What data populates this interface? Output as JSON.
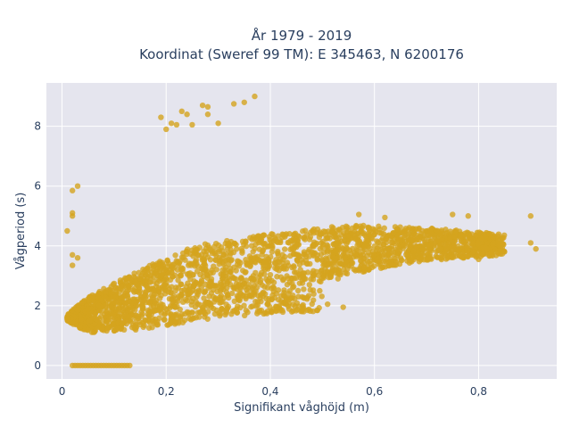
{
  "chart_data": {
    "type": "scatter",
    "title_line1": "År 1979 - 2019",
    "title_line2": "Koordinat (Sweref 99 TM): E 345463, N 6200176",
    "xlabel": "Signifikant våghöjd (m)",
    "ylabel": "Vågperiod (s)",
    "xlim": [
      -0.03,
      0.95
    ],
    "ylim": [
      -0.45,
      9.45
    ],
    "x_ticks": [
      0,
      0.2,
      0.4,
      0.6,
      0.8
    ],
    "x_tick_labels": [
      "0",
      "0,2",
      "0,4",
      "0,6",
      "0,8"
    ],
    "y_ticks": [
      0,
      2,
      4,
      6,
      8
    ],
    "y_tick_labels": [
      "0",
      "2",
      "4",
      "6",
      "8"
    ],
    "grid": true,
    "marker_color": "#D4A41E",
    "plot_background": "#E5E5EE",
    "series": [
      {
        "outliers": [
          {
            "x": 0.01,
            "y": 4.5
          },
          {
            "x": 0.02,
            "y": 5.1
          },
          {
            "x": 0.02,
            "y": 5.0
          },
          {
            "x": 0.02,
            "y": 5.85
          },
          {
            "x": 0.03,
            "y": 6.0
          },
          {
            "x": 0.02,
            "y": 3.7
          },
          {
            "x": 0.03,
            "y": 3.6
          },
          {
            "x": 0.02,
            "y": 3.35
          },
          {
            "x": 0.01,
            "y": 1.55
          },
          {
            "x": 0.19,
            "y": 8.3
          },
          {
            "x": 0.2,
            "y": 7.9
          },
          {
            "x": 0.21,
            "y": 8.1
          },
          {
            "x": 0.23,
            "y": 8.5
          },
          {
            "x": 0.24,
            "y": 8.4
          },
          {
            "x": 0.25,
            "y": 8.05
          },
          {
            "x": 0.27,
            "y": 8.7
          },
          {
            "x": 0.28,
            "y": 8.65
          },
          {
            "x": 0.28,
            "y": 8.4
          },
          {
            "x": 0.3,
            "y": 8.1
          },
          {
            "x": 0.33,
            "y": 8.75
          },
          {
            "x": 0.35,
            "y": 8.8
          },
          {
            "x": 0.37,
            "y": 9.0
          },
          {
            "x": 0.22,
            "y": 8.05
          },
          {
            "x": 0.51,
            "y": 2.05
          },
          {
            "x": 0.54,
            "y": 1.95
          },
          {
            "x": 0.53,
            "y": 2.9
          },
          {
            "x": 0.75,
            "y": 5.05
          },
          {
            "x": 0.78,
            "y": 5.0
          },
          {
            "x": 0.9,
            "y": 5.0
          },
          {
            "x": 0.91,
            "y": 3.9
          },
          {
            "x": 0.9,
            "y": 4.1
          },
          {
            "x": 0.84,
            "y": 4.0
          },
          {
            "x": 0.8,
            "y": 3.55
          },
          {
            "x": 0.57,
            "y": 5.05
          },
          {
            "x": 0.62,
            "y": 4.95
          }
        ],
        "zero_period_x_range": [
          0.02,
          0.13
        ],
        "lower_edge": [
          [
            0.01,
            1.5
          ],
          [
            0.05,
            1.1
          ],
          [
            0.15,
            1.2
          ],
          [
            0.3,
            1.6
          ],
          [
            0.45,
            1.8
          ],
          [
            0.5,
            1.8
          ]
        ],
        "upper_edge": [
          [
            0.01,
            1.7
          ],
          [
            0.05,
            2.3
          ],
          [
            0.15,
            3.2
          ],
          [
            0.25,
            4.0
          ],
          [
            0.4,
            4.4
          ],
          [
            0.55,
            4.7
          ],
          [
            0.7,
            4.6
          ],
          [
            0.85,
            4.4
          ]
        ],
        "upper_tail_lower_edge": [
          [
            0.5,
            2.9
          ],
          [
            0.6,
            3.2
          ],
          [
            0.7,
            3.5
          ],
          [
            0.85,
            3.7
          ]
        ]
      }
    ]
  }
}
